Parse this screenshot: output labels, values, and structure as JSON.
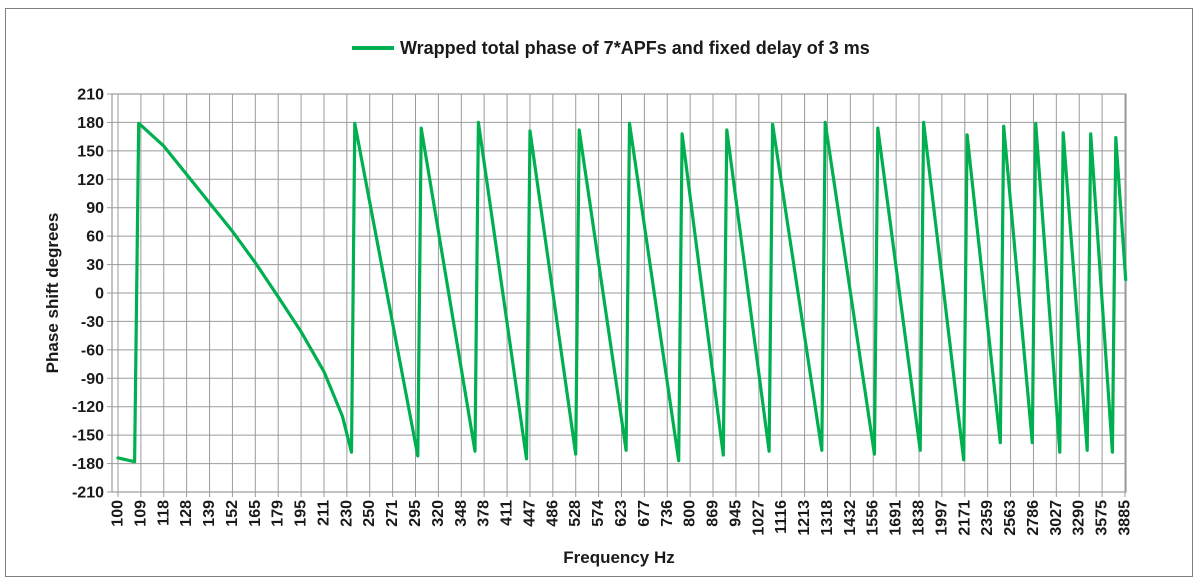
{
  "colors": {
    "line_green": "#00B050",
    "gridline_gray": "#9B9B9B",
    "figure_border_gray": "#7F7F7F",
    "text_black": "#1A1A1A",
    "background": "#FFFFFF"
  },
  "legend": {
    "swatch": "green-line"
  },
  "chart_data": {
    "type": "line",
    "title": "Wrapped total phase of 7*APFs and fixed delay of 3 ms",
    "xlabel": "Frequency Hz",
    "ylabel": "Phase shift degrees",
    "x_scale": "log-category",
    "grid": true,
    "legend_position": "top-center",
    "ylim": [
      -210,
      210
    ],
    "y_tick_step": 30,
    "y_ticks": [
      210,
      180,
      150,
      120,
      90,
      60,
      30,
      0,
      -30,
      -60,
      -90,
      -120,
      -150,
      -180,
      -210
    ],
    "x_tick_labels": [
      100,
      109,
      118,
      128,
      139,
      152,
      165,
      179,
      195,
      211,
      230,
      250,
      271,
      295,
      320,
      348,
      378,
      411,
      447,
      486,
      528,
      574,
      623,
      677,
      736,
      800,
      869,
      945,
      1027,
      1116,
      1213,
      1318,
      1432,
      1556,
      1691,
      1838,
      1997,
      2171,
      2359,
      2563,
      2786,
      3027,
      3290,
      3575,
      3885
    ],
    "series": [
      {
        "name": "Wrapped total phase of 7*APFs and fixed delay of 3 ms",
        "color": "#00B050",
        "points": [
          [
            100,
            -174
          ],
          [
            106.2,
            -178
          ],
          [
            107.8,
            179
          ],
          [
            108.7,
            177
          ],
          [
            118.1,
            155
          ],
          [
            128.4,
            125
          ],
          [
            139.5,
            95
          ],
          [
            151.6,
            65
          ],
          [
            164.7,
            32
          ],
          [
            179,
            -4
          ],
          [
            194.6,
            -41
          ],
          [
            211.4,
            -83
          ],
          [
            226,
            -130
          ],
          [
            233.6,
            -168
          ],
          [
            236.5,
            179
          ],
          [
            297.3,
            -172
          ],
          [
            301,
            174
          ],
          [
            366,
            -167
          ],
          [
            370.6,
            180
          ],
          [
            441.3,
            -175
          ],
          [
            446.9,
            171
          ],
          [
            527.8,
            -170
          ],
          [
            534.4,
            172
          ],
          [
            633.8,
            -166
          ],
          [
            641.7,
            179
          ],
          [
            767.3,
            -177
          ],
          [
            777,
            168
          ],
          [
            902.5,
            -171
          ],
          [
            913.8,
            172
          ],
          [
            1065.9,
            -167
          ],
          [
            1079.3,
            178
          ],
          [
            1290.6,
            -166
          ],
          [
            1306.8,
            180
          ],
          [
            1562.7,
            -170
          ],
          [
            1582.3,
            174
          ],
          [
            1845.6,
            -166
          ],
          [
            1868.8,
            180
          ],
          [
            2161.5,
            -176
          ],
          [
            2188.6,
            167
          ],
          [
            2469.2,
            -158
          ],
          [
            2500.2,
            176
          ],
          [
            2774,
            -158
          ],
          [
            2808.9,
            179
          ],
          [
            3065.2,
            -168
          ],
          [
            3103.7,
            169
          ],
          [
            3386.9,
            -166
          ],
          [
            3429.5,
            168
          ],
          [
            3711.5,
            -168
          ],
          [
            3758.1,
            164
          ],
          [
            3895,
            14
          ]
        ]
      }
    ]
  }
}
